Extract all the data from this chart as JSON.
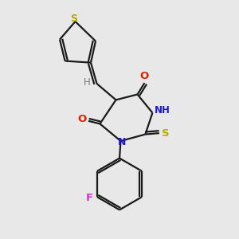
{
  "bg_color": "#e8e8e8",
  "bond_color": "#1a1a1a",
  "S_color": "#b8a800",
  "O_color": "#dd2200",
  "N_color": "#1a1acc",
  "F_color": "#cc33cc",
  "H_color": "#777777",
  "fig_size": [
    3.0,
    3.0
  ],
  "dpi": 100,
  "lw": 1.6,
  "xlim": [
    0,
    10
  ],
  "ylim": [
    0,
    10
  ]
}
